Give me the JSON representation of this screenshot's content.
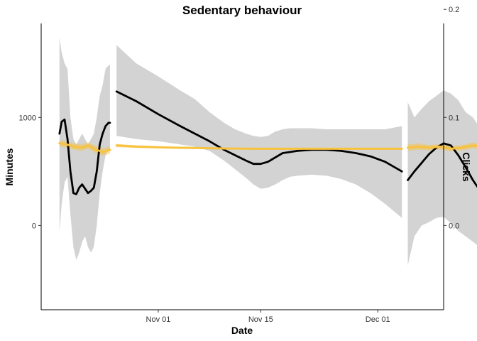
{
  "chart_data": {
    "type": "line",
    "title": "Sedentary behaviour",
    "xlabel": "Date",
    "ylabel": "Minutes",
    "y2label": "Clicks",
    "x_ticks": [
      "Nov 01",
      "Nov 15",
      "Dec 01"
    ],
    "x_tick_days": [
      31,
      45,
      61
    ],
    "xlim_days": [
      15,
      70
    ],
    "ylim": [
      -780,
      1870
    ],
    "y_ticks": [
      0,
      1000
    ],
    "y2lim": [
      -0.078,
      0.187
    ],
    "y2_ticks": [
      0.0,
      0.1,
      0.2
    ],
    "grid": false,
    "legend": "none",
    "colors": {
      "minutes": "#000000",
      "clicks": "#f7c23e",
      "band": "#d3d3d3"
    },
    "series": [
      {
        "color": "#000000",
        "axis": "left",
        "segments": [
          {
            "x": [
              17.5,
              17.8,
              18.2,
              18.6,
              19.0,
              19.4,
              19.8,
              20.2,
              20.6,
              21.0,
              21.4,
              21.8,
              22.2,
              22.6,
              23.0,
              23.4,
              23.8,
              24.2,
              24.4
            ],
            "y": [
              850,
              960,
              980,
              800,
              500,
              300,
              290,
              350,
              380,
              340,
              300,
              320,
              350,
              500,
              750,
              850,
              920,
              950,
              950
            ],
            "lower": [
              -60,
              200,
              400,
              450,
              100,
              -200,
              -320,
              -250,
              -150,
              -100,
              -200,
              -250,
              -200,
              0,
              300,
              500,
              650,
              700,
              710
            ],
            "upper": [
              1740,
              1600,
              1500,
              1450,
              1000,
              800,
              750,
              800,
              850,
              800,
              750,
              800,
              850,
              1000,
              1200,
              1300,
              1450,
              1480,
              1490
            ]
          },
          {
            "x": [
              25.3,
              28,
              31,
              34,
              36,
              38,
              40,
              41.5,
              43,
              44,
              45,
              46,
              47,
              48,
              49,
              50,
              52,
              54,
              56,
              58,
              60,
              62,
              64.3
            ],
            "y": [
              1240,
              1150,
              1030,
              920,
              850,
              780,
              700,
              650,
              600,
              570,
              570,
              590,
              630,
              670,
              680,
              690,
              700,
              700,
              690,
              670,
              640,
              590,
              500
            ],
            "lower": [
              830,
              800,
              780,
              750,
              730,
              690,
              600,
              520,
              440,
              380,
              340,
              350,
              380,
              420,
              450,
              460,
              470,
              460,
              430,
              380,
              300,
              200,
              70
            ],
            "upper": [
              1670,
              1500,
              1380,
              1250,
              1170,
              1050,
              950,
              890,
              850,
              830,
              820,
              830,
              870,
              890,
              900,
              900,
              900,
              890,
              890,
              890,
              890,
              890,
              920
            ]
          },
          {
            "x": [
              65.1,
              66,
              67,
              68,
              69,
              70,
              71,
              72,
              73,
              74,
              75,
              76,
              77,
              78.1
            ],
            "y": [
              420,
              500,
              580,
              660,
              720,
              760,
              740,
              650,
              540,
              420,
              320,
              230,
              160,
              100
            ],
            "lower": [
              -370,
              -100,
              0,
              30,
              70,
              80,
              20,
              -50,
              -100,
              -150,
              -200,
              -350,
              -500,
              -650
            ],
            "upper": [
              1140,
              1000,
              1080,
              1150,
              1200,
              1250,
              1220,
              1160,
              1050,
              1000,
              900,
              850,
              830,
              880
            ]
          }
        ]
      },
      {
        "color": "#f7c23e",
        "axis": "left",
        "segments": [
          {
            "x": [
              17.5,
              18.5,
              19.5,
              20.5,
              21.5,
              22.5,
              23.5,
              24.4
            ],
            "y": [
              760,
              750,
              730,
              720,
              740,
              700,
              680,
              700
            ],
            "lower": [
              730,
              720,
              700,
              690,
              710,
              665,
              645,
              665
            ],
            "upper": [
              790,
              780,
              760,
              750,
              770,
              735,
              715,
              735
            ]
          },
          {
            "x": [
              25.3,
              28,
              32,
              36,
              40,
              44,
              48,
              52,
              56,
              60,
              64.3
            ],
            "y": [
              740,
              730,
              722,
              717,
              713,
              710,
              710,
              710,
              710,
              710,
              710
            ],
            "lower": [
              725,
              718,
              712,
              708,
              705,
              702,
              702,
              702,
              702,
              702,
              702
            ],
            "upper": [
              755,
              742,
              732,
              726,
              721,
              718,
              718,
              718,
              718,
              718,
              718
            ]
          },
          {
            "x": [
              65.1,
              66.5,
              68,
              69.5,
              71,
              72.5,
              74,
              75.5,
              77,
              78.1
            ],
            "y": [
              720,
              730,
              720,
              730,
              710,
              720,
              740,
              730,
              720,
              720
            ],
            "lower": [
              690,
              700,
              695,
              705,
              685,
              695,
              712,
              703,
              690,
              688
            ],
            "upper": [
              750,
              760,
              745,
              755,
              735,
              745,
              768,
              757,
              750,
              752
            ]
          }
        ]
      }
    ]
  }
}
